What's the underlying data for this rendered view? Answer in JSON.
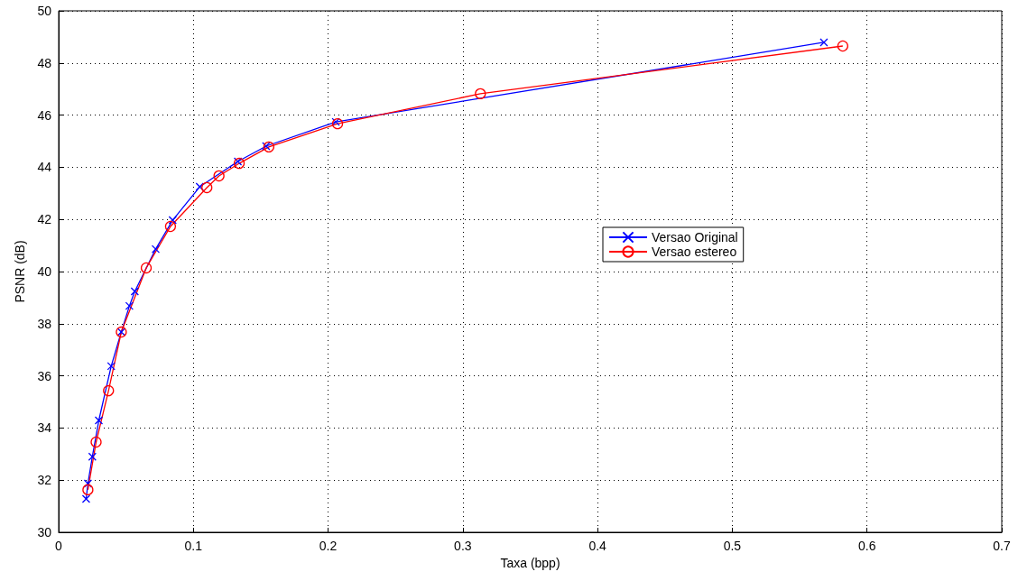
{
  "chart_data": {
    "type": "line",
    "xlabel": "Taxa (bpp)",
    "ylabel": "PSNR (dB)",
    "xlim": [
      0,
      0.7
    ],
    "xticks": [
      0,
      0.1,
      0.2,
      0.3,
      0.4,
      0.5,
      0.6,
      0.7
    ],
    "ylim": [
      30,
      50
    ],
    "yticks": [
      30,
      32,
      34,
      36,
      38,
      40,
      42,
      44,
      46,
      48,
      50
    ],
    "grid": true,
    "legend": "right",
    "line_style": "solid",
    "series": [
      {
        "name": "Versao Original",
        "color": "#0000ff",
        "marker": "cross",
        "x": [
          0.0204,
          0.0217,
          0.025,
          0.0298,
          0.039,
          0.0465,
          0.0525,
          0.0565,
          0.072,
          0.0846,
          0.1047,
          0.133,
          0.154,
          0.2057,
          0.568
        ],
        "values": [
          31.28,
          31.87,
          32.9,
          34.29,
          36.37,
          37.68,
          38.68,
          39.24,
          40.86,
          41.97,
          43.25,
          44.22,
          44.81,
          45.74,
          48.79
        ]
      },
      {
        "name": "Versao estereo",
        "color": "#ff0000",
        "marker": "circle",
        "x": [
          0.0217,
          0.0278,
          0.037,
          0.0465,
          0.065,
          0.083,
          0.11,
          0.119,
          0.134,
          0.156,
          0.207,
          0.313,
          0.582
        ],
        "values": [
          31.63,
          33.46,
          35.43,
          37.68,
          40.14,
          41.73,
          43.22,
          43.67,
          44.15,
          44.78,
          45.67,
          46.82,
          48.65
        ]
      }
    ]
  }
}
